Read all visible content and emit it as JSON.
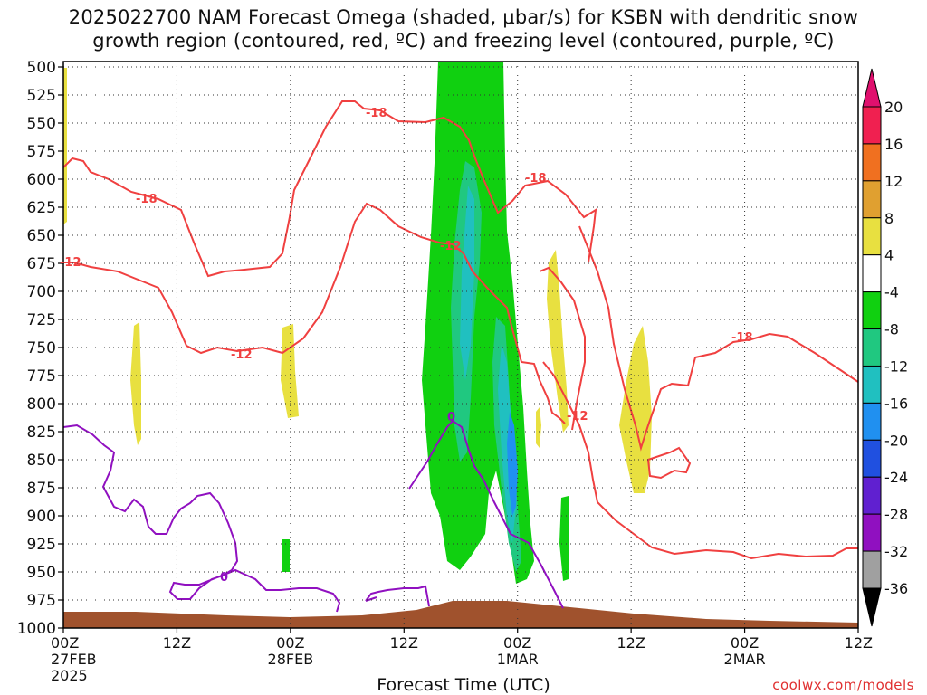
{
  "title_line1": "2025022700 NAM Forecast Omega (shaded, μbar/s) for KSBN with dendritic snow",
  "title_line2": "growth region (contoured, red, ºC) and freezing level (contoured, purple, ºC)",
  "xlabel": "Forecast Time (UTC)",
  "credit": "coolwx.com/models",
  "chart_data": {
    "type": "heatmap",
    "x_axis": {
      "range_hours": [
        0,
        84
      ],
      "ticks": [
        {
          "hour": 0,
          "label": "00Z",
          "label2": "27FEB",
          "label3": "2025"
        },
        {
          "hour": 12,
          "label": "12Z"
        },
        {
          "hour": 24,
          "label": "00Z",
          "label2": "28FEB"
        },
        {
          "hour": 36,
          "label": "12Z"
        },
        {
          "hour": 48,
          "label": "00Z",
          "label2": "1MAR"
        },
        {
          "hour": 60,
          "label": "12Z"
        },
        {
          "hour": 72,
          "label": "00Z",
          "label2": "2MAR"
        },
        {
          "hour": 84,
          "label": "12Z"
        }
      ]
    },
    "y_axis": {
      "range_hpa": [
        500,
        1000
      ],
      "ticks": [
        500,
        525,
        550,
        575,
        600,
        625,
        650,
        675,
        700,
        725,
        750,
        775,
        800,
        825,
        850,
        875,
        900,
        925,
        950,
        975,
        1000
      ]
    },
    "colorbar": {
      "levels": [
        20,
        16,
        12,
        8,
        4,
        -4,
        -8,
        -12,
        -16,
        -20,
        -24,
        -28,
        -32,
        -36
      ],
      "colors": [
        "#f02050",
        "#f07020",
        "#e0a030",
        "#e8e040",
        "#ffffff",
        "#10d010",
        "#20c880",
        "#20c0c0",
        "#2090f0",
        "#2050e0",
        "#6020d0",
        "#9010c0",
        "#a0a0a0",
        "#000000"
      ],
      "top_arrow_color": "#e0106e",
      "bottom_arrow_color": "#000000"
    },
    "contours": {
      "dgz_labels": [
        "-18",
        "-12",
        "-18",
        "-12",
        "-18",
        "-12",
        "-12",
        "-18"
      ],
      "freezing_labels": [
        "0",
        "0"
      ]
    }
  }
}
